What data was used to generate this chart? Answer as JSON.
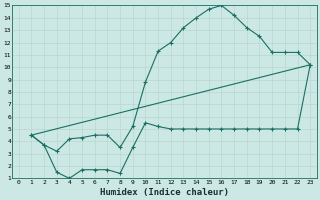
{
  "xlabel": "Humidex (Indice chaleur)",
  "bg_color": "#cce8e4",
  "grid_major_color": "#b0ccc8",
  "grid_minor_color": "#d4e8e4",
  "line_color": "#1a6e64",
  "xlim": [
    -0.5,
    23.5
  ],
  "ylim": [
    1,
    15
  ],
  "xtick_labels": [
    "0",
    "1",
    "2",
    "3",
    "4",
    "5",
    "6",
    "7",
    "8",
    "9",
    "10",
    "11",
    "12",
    "13",
    "14",
    "15",
    "16",
    "17",
    "18",
    "19",
    "20",
    "21",
    "22",
    "23"
  ],
  "ytick_labels": [
    "1",
    "2",
    "3",
    "4",
    "5",
    "6",
    "7",
    "8",
    "9",
    "10",
    "11",
    "12",
    "13",
    "14",
    "15"
  ],
  "line1_x": [
    1,
    2,
    3,
    4,
    5,
    6,
    7,
    8,
    9,
    10,
    11,
    12,
    13,
    14,
    15,
    16,
    17,
    18,
    19,
    20,
    21,
    22,
    23
  ],
  "line1_y": [
    4.5,
    3.7,
    3.2,
    4.2,
    4.3,
    4.5,
    4.5,
    3.5,
    5.2,
    8.8,
    11.3,
    12.0,
    13.2,
    14.0,
    14.7,
    15.0,
    14.2,
    13.2,
    12.5,
    11.2,
    11.2,
    11.2,
    10.2
  ],
  "line2_x": [
    1,
    2,
    3,
    4,
    5,
    6,
    7,
    8,
    9,
    10,
    11,
    12,
    13,
    14,
    15,
    16,
    17,
    18,
    19,
    20,
    21,
    22,
    23
  ],
  "line2_y": [
    4.5,
    3.7,
    1.5,
    1.0,
    1.7,
    1.7,
    1.7,
    1.4,
    3.5,
    5.5,
    5.2,
    5.0,
    5.0,
    5.0,
    5.0,
    5.0,
    5.0,
    5.0,
    5.0,
    5.0,
    5.0,
    5.0,
    10.2
  ],
  "line3_x": [
    1,
    23
  ],
  "line3_y": [
    4.5,
    10.2
  ]
}
